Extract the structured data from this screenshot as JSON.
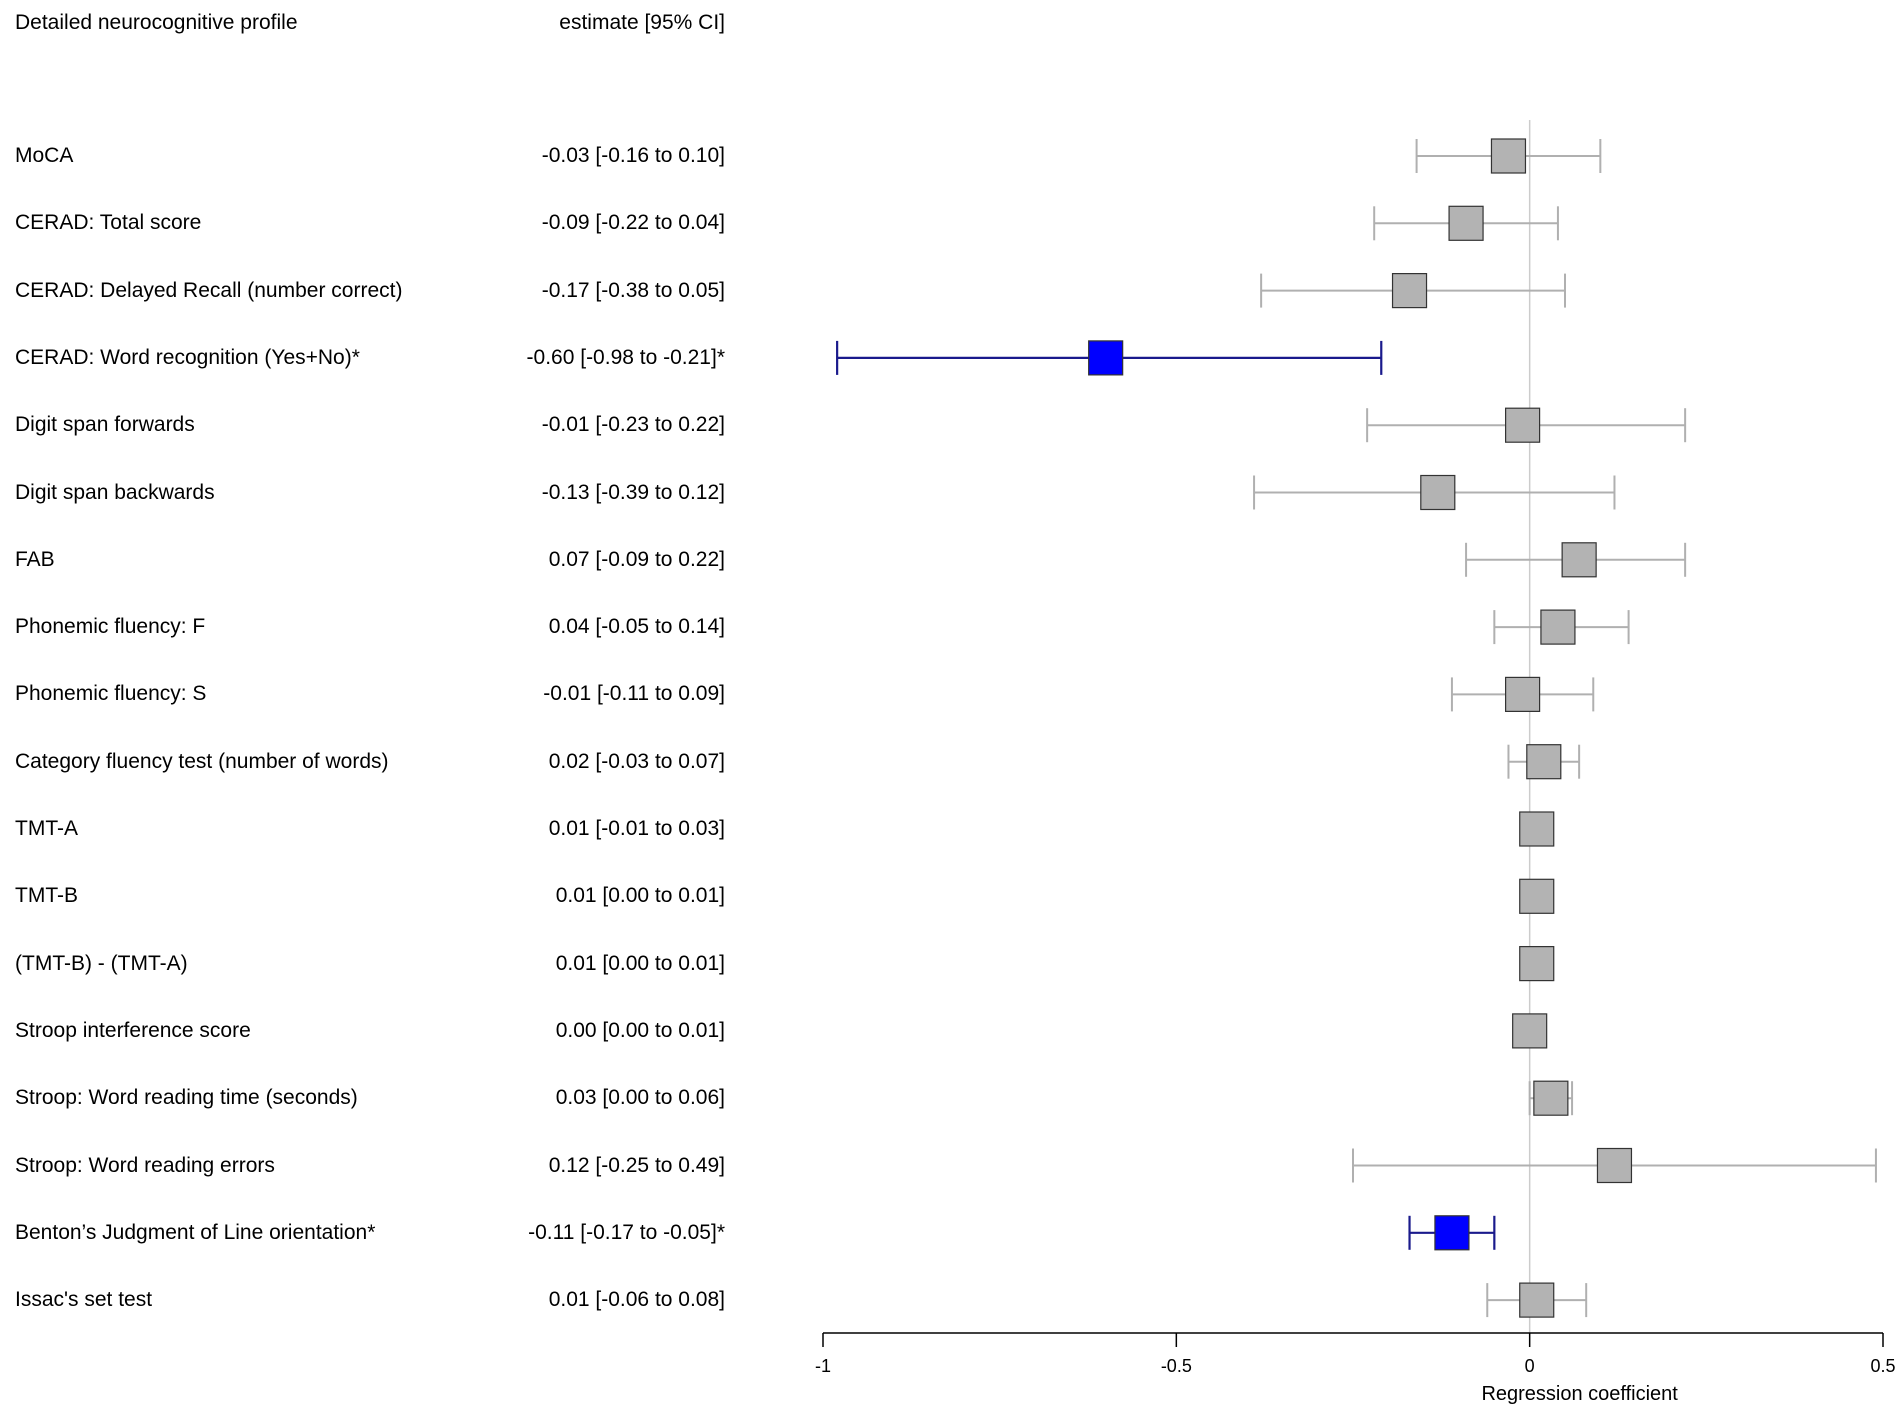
{
  "header": {
    "label_col": "Detailed neurocognitive profile",
    "estimate_col": "estimate [95% CI]"
  },
  "colors": {
    "significant": "#0000ff",
    "significant_line": "#1a1a8c",
    "nonsignificant": "#b3b3b3",
    "nonsignificant_line": "#b0b0b0",
    "box_border": "#333333",
    "reference_line": "#cccccc"
  },
  "chart_data": {
    "type": "forest",
    "xlabel": "Regression coefficient",
    "xlim": [
      -1,
      0.5
    ],
    "xticks": [
      -1,
      -0.5,
      0,
      0.5
    ],
    "xtick_labels": [
      "-1",
      "-0.5",
      "0",
      "0.5"
    ],
    "reference_value": 0,
    "rows": [
      {
        "label": "MoCA",
        "estimate_text": "-0.03 [-0.16 to 0.10]",
        "est": -0.03,
        "lo": -0.16,
        "hi": 0.1,
        "significant": false
      },
      {
        "label": "CERAD: Total score",
        "estimate_text": "-0.09 [-0.22 to 0.04]",
        "est": -0.09,
        "lo": -0.22,
        "hi": 0.04,
        "significant": false
      },
      {
        "label": "CERAD: Delayed Recall (number correct)",
        "estimate_text": "-0.17 [-0.38 to 0.05]",
        "est": -0.17,
        "lo": -0.38,
        "hi": 0.05,
        "significant": false
      },
      {
        "label": "CERAD: Word recognition (Yes+No)*",
        "estimate_text": "-0.60 [-0.98 to -0.21]*",
        "est": -0.6,
        "lo": -0.98,
        "hi": -0.21,
        "significant": true
      },
      {
        "label": "Digit span forwards",
        "estimate_text": "-0.01 [-0.23 to 0.22]",
        "est": -0.01,
        "lo": -0.23,
        "hi": 0.22,
        "significant": false
      },
      {
        "label": "Digit span backwards",
        "estimate_text": "-0.13 [-0.39 to 0.12]",
        "est": -0.13,
        "lo": -0.39,
        "hi": 0.12,
        "significant": false
      },
      {
        "label": "FAB",
        "estimate_text": "0.07 [-0.09 to 0.22]",
        "est": 0.07,
        "lo": -0.09,
        "hi": 0.22,
        "significant": false
      },
      {
        "label": "Phonemic fluency: F",
        "estimate_text": "0.04 [-0.05 to 0.14]",
        "est": 0.04,
        "lo": -0.05,
        "hi": 0.14,
        "significant": false
      },
      {
        "label": "Phonemic fluency: S",
        "estimate_text": "-0.01 [-0.11 to 0.09]",
        "est": -0.01,
        "lo": -0.11,
        "hi": 0.09,
        "significant": false
      },
      {
        "label": "Category fluency test (number of words)",
        "estimate_text": "0.02 [-0.03 to 0.07]",
        "est": 0.02,
        "lo": -0.03,
        "hi": 0.07,
        "significant": false
      },
      {
        "label": "TMT-A",
        "estimate_text": "0.01 [-0.01 to 0.03]",
        "est": 0.01,
        "lo": -0.01,
        "hi": 0.03,
        "significant": false
      },
      {
        "label": "TMT-B",
        "estimate_text": "0.01 [0.00 to 0.01]",
        "est": 0.01,
        "lo": 0.0,
        "hi": 0.01,
        "significant": false
      },
      {
        "label": "(TMT-B) - (TMT-A)",
        "estimate_text": "0.01 [0.00 to 0.01]",
        "est": 0.01,
        "lo": 0.0,
        "hi": 0.01,
        "significant": false
      },
      {
        "label": "Stroop interference score",
        "estimate_text": "0.00 [0.00 to 0.01]",
        "est": 0.0,
        "lo": 0.0,
        "hi": 0.01,
        "significant": false
      },
      {
        "label": "Stroop: Word reading time (seconds)",
        "estimate_text": "0.03 [0.00 to 0.06]",
        "est": 0.03,
        "lo": 0.0,
        "hi": 0.06,
        "significant": false
      },
      {
        "label": "Stroop: Word reading errors",
        "estimate_text": "0.12 [-0.25 to 0.49]",
        "est": 0.12,
        "lo": -0.25,
        "hi": 0.49,
        "significant": false
      },
      {
        "label": "Benton’s Judgment of Line orientation*",
        "estimate_text": "-0.11 [-0.17 to -0.05]*",
        "est": -0.11,
        "lo": -0.17,
        "hi": -0.05,
        "significant": true
      },
      {
        "label": "Issac's set test",
        "estimate_text": "0.01 [-0.06 to 0.08]",
        "est": 0.01,
        "lo": -0.06,
        "hi": 0.08,
        "significant": false
      }
    ]
  }
}
